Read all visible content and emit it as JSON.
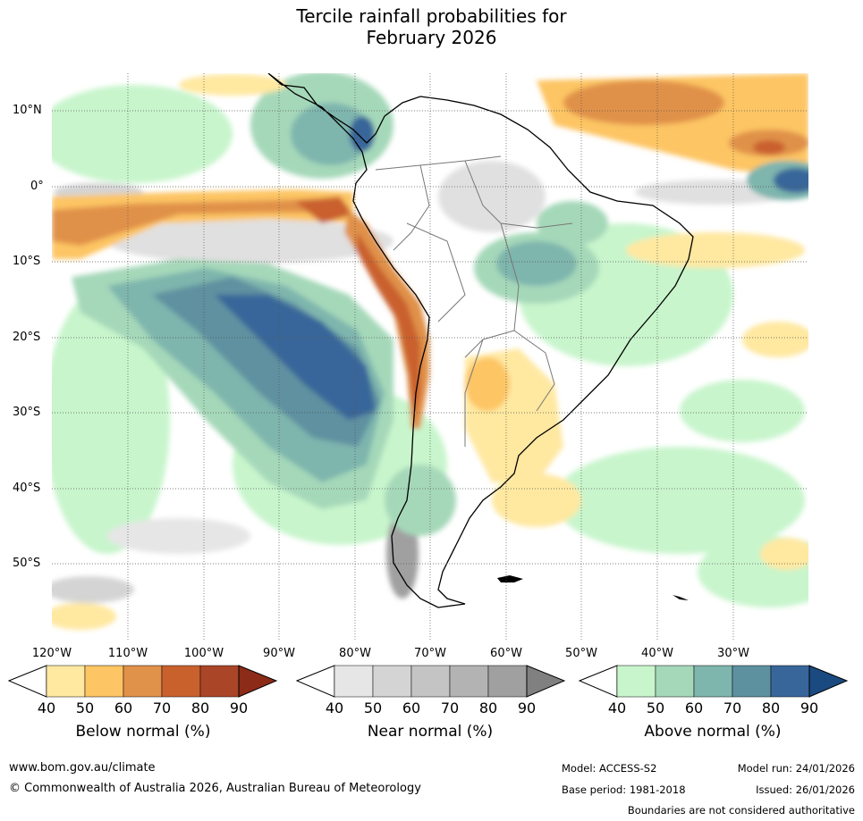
{
  "title": {
    "line1": "Tercile rainfall probabilities for",
    "line2": "February 2026"
  },
  "map": {
    "lat_labels": [
      "10°N",
      "0°",
      "10°S",
      "20°S",
      "30°S",
      "40°S",
      "50°S"
    ],
    "lon_labels": [
      "120°W",
      "110°W",
      "100°W",
      "90°W",
      "80°W",
      "70°W",
      "60°W",
      "50°W",
      "40°W",
      "30°W"
    ]
  },
  "colorbars": {
    "below": {
      "label": "Below normal (%)",
      "ticks": [
        "40",
        "50",
        "60",
        "70",
        "80",
        "90"
      ],
      "colors": [
        "#ffffff",
        "#ffe8a0",
        "#fdc563",
        "#e0914a",
        "#c9612d",
        "#aa4527",
        "#8c2b18"
      ]
    },
    "near": {
      "label": "Near normal (%)",
      "ticks": [
        "40",
        "50",
        "60",
        "70",
        "80",
        "90"
      ],
      "colors": [
        "#ffffff",
        "#e6e6e6",
        "#d4d4d4",
        "#c4c4c4",
        "#b3b3b3",
        "#a0a0a0",
        "#808080"
      ]
    },
    "above": {
      "label": "Above normal (%)",
      "ticks": [
        "40",
        "50",
        "60",
        "70",
        "80",
        "90"
      ],
      "colors": [
        "#ffffff",
        "#c8f5cc",
        "#a5d8b9",
        "#7eb5ad",
        "#5e91a0",
        "#38669a",
        "#1a4a80"
      ]
    }
  },
  "footer": {
    "website": "www.bom.gov.au/climate",
    "copyright": "© Commonwealth of Australia 2026, Australian Bureau of Meteorology",
    "model": "Model: ACCESS-S2",
    "model_run": "Model run: 24/01/2026",
    "base_period": "Base period: 1981-2018",
    "issued": "Issued: 26/01/2026",
    "disclaimer": "Boundaries are not considered authoritative"
  }
}
